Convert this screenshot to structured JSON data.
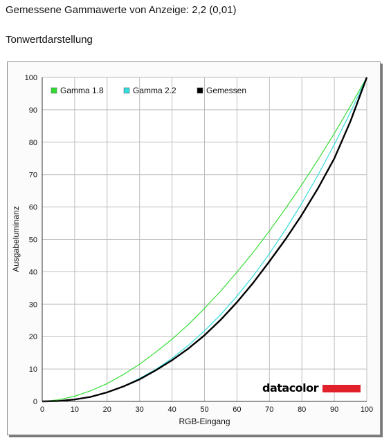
{
  "page": {
    "heading": "Gemessene Gammawerte von Anzeige: 2,2 (0,01)",
    "subheading": "Tonwertdarstellung"
  },
  "chart_data": {
    "type": "line",
    "xlabel": "RGB-Eingang",
    "ylabel": "Ausgabeluminanz",
    "xlim": [
      0,
      100
    ],
    "ylim": [
      0,
      100
    ],
    "xticks": [
      0,
      10,
      20,
      30,
      40,
      50,
      60,
      70,
      80,
      90,
      100
    ],
    "yticks": [
      0,
      10,
      20,
      30,
      40,
      50,
      60,
      70,
      80,
      90,
      100
    ],
    "grid": true,
    "legend_position": "top-left",
    "logo_text": "datacolor",
    "series": [
      {
        "name": "Gamma 1.8",
        "color": "#33dd33",
        "x": [
          0,
          5,
          10,
          15,
          20,
          25,
          30,
          35,
          40,
          45,
          50,
          55,
          60,
          65,
          70,
          75,
          80,
          85,
          90,
          95,
          100
        ],
        "y": [
          0,
          0.5,
          1.6,
          3.3,
          5.5,
          8.3,
          11.5,
          15.2,
          19.2,
          23.7,
          28.7,
          34.1,
          39.9,
          46.0,
          52.6,
          59.6,
          66.9,
          74.6,
          82.7,
          91.2,
          100
        ]
      },
      {
        "name": "Gamma 2.2",
        "color": "#33dddd",
        "x": [
          0,
          5,
          10,
          15,
          20,
          25,
          30,
          35,
          40,
          45,
          50,
          55,
          60,
          65,
          70,
          75,
          80,
          85,
          90,
          95,
          100
        ],
        "y": [
          0,
          0.1,
          0.6,
          1.5,
          2.9,
          4.7,
          7.1,
          9.9,
          13.3,
          17.3,
          21.8,
          26.8,
          32.5,
          38.7,
          45.6,
          53.1,
          61.2,
          69.9,
          79.3,
          89.3,
          100
        ]
      },
      {
        "name": "Gemessen",
        "color": "#000000",
        "x": [
          0,
          5,
          10,
          15,
          20,
          25,
          30,
          35,
          40,
          45,
          50,
          55,
          60,
          65,
          70,
          75,
          80,
          85,
          90,
          95,
          100
        ],
        "y": [
          0,
          0.1,
          0.6,
          1.4,
          2.8,
          4.6,
          6.8,
          9.6,
          12.7,
          16.3,
          20.4,
          25.2,
          30.6,
          36.6,
          43.2,
          50.1,
          57.6,
          65.8,
          75.0,
          86.5,
          100
        ]
      }
    ]
  },
  "colors": {
    "logo_bar": "#e0202a",
    "grid": "#bdbdbd",
    "plot_background": "#ffffff"
  }
}
